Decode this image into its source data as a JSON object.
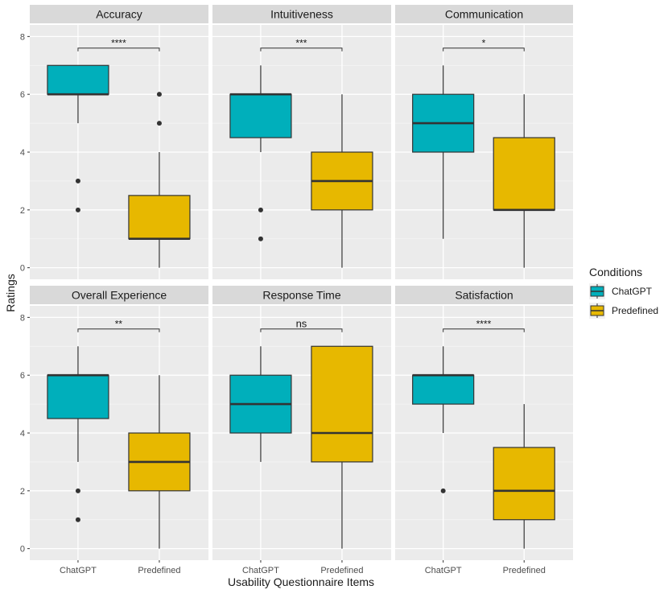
{
  "chart_data": {
    "type": "boxplot",
    "xlabel": "Usability Questionnaire Items",
    "ylabel": "Ratings",
    "ylim": [
      -0.4,
      8.4
    ],
    "yticks": [
      0,
      2,
      4,
      6,
      8
    ],
    "categories": [
      "ChatGPT",
      "Predefined"
    ],
    "grid": true,
    "facet_grid": "2 rows x 3 columns",
    "legend": {
      "title": "Conditions",
      "position": "right",
      "entries": [
        {
          "name": "ChatGPT",
          "color": "#00AFBB"
        },
        {
          "name": "Predefined",
          "color": "#E7B800"
        }
      ]
    },
    "panels": [
      {
        "title": "Accuracy",
        "significance": "****",
        "boxes": [
          {
            "group": "ChatGPT",
            "lower_whisker": 5,
            "q1": 6,
            "median": 6,
            "q3": 7,
            "upper_whisker": 7,
            "outliers": [
              3,
              2
            ]
          },
          {
            "group": "Predefined",
            "lower_whisker": 0,
            "q1": 1,
            "median": 1,
            "q3": 2.5,
            "upper_whisker": 4,
            "outliers": [
              6,
              5
            ]
          }
        ]
      },
      {
        "title": "Intuitiveness",
        "significance": "***",
        "boxes": [
          {
            "group": "ChatGPT",
            "lower_whisker": 4,
            "q1": 4.5,
            "median": 6,
            "q3": 6,
            "upper_whisker": 7,
            "outliers": [
              2,
              1
            ]
          },
          {
            "group": "Predefined",
            "lower_whisker": 0,
            "q1": 2,
            "median": 3,
            "q3": 4,
            "upper_whisker": 6,
            "outliers": []
          }
        ]
      },
      {
        "title": "Communication",
        "significance": "*",
        "boxes": [
          {
            "group": "ChatGPT",
            "lower_whisker": 1,
            "q1": 4,
            "median": 5,
            "q3": 6,
            "upper_whisker": 7,
            "outliers": []
          },
          {
            "group": "Predefined",
            "lower_whisker": 0,
            "q1": 2,
            "median": 2,
            "q3": 4.5,
            "upper_whisker": 6,
            "outliers": []
          }
        ]
      },
      {
        "title": "Overall Experience",
        "significance": "**",
        "boxes": [
          {
            "group": "ChatGPT",
            "lower_whisker": 3,
            "q1": 4.5,
            "median": 6,
            "q3": 6,
            "upper_whisker": 7,
            "outliers": [
              2,
              1
            ]
          },
          {
            "group": "Predefined",
            "lower_whisker": 0,
            "q1": 2,
            "median": 3,
            "q3": 4,
            "upper_whisker": 6,
            "outliers": []
          }
        ]
      },
      {
        "title": "Response Time",
        "significance": "ns",
        "boxes": [
          {
            "group": "ChatGPT",
            "lower_whisker": 3,
            "q1": 4,
            "median": 5,
            "q3": 6,
            "upper_whisker": 7,
            "outliers": []
          },
          {
            "group": "Predefined",
            "lower_whisker": 0,
            "q1": 3,
            "median": 4,
            "q3": 7,
            "upper_whisker": 7,
            "outliers": []
          }
        ]
      },
      {
        "title": "Satisfaction",
        "significance": "****",
        "boxes": [
          {
            "group": "ChatGPT",
            "lower_whisker": 4,
            "q1": 5,
            "median": 6,
            "q3": 6,
            "upper_whisker": 7,
            "outliers": [
              2
            ]
          },
          {
            "group": "Predefined",
            "lower_whisker": 0,
            "q1": 1,
            "median": 2,
            "q3": 3.5,
            "upper_whisker": 5,
            "outliers": []
          }
        ]
      }
    ]
  }
}
